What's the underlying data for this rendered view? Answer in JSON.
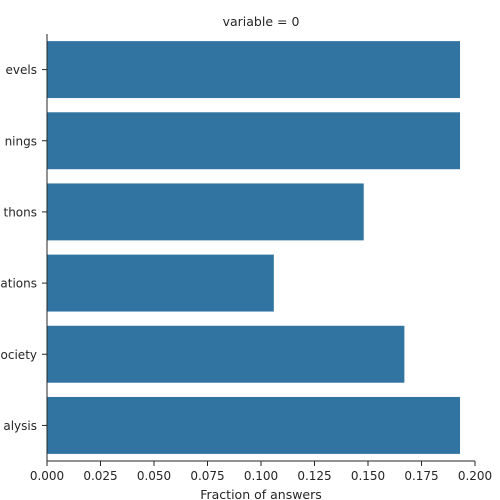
{
  "chart_data": {
    "type": "bar",
    "orientation": "horizontal",
    "title": "variable = 0",
    "xlabel": "Fraction of answers",
    "ylabel": "",
    "categories": [
      "evels",
      "nings",
      "thons",
      "ations",
      "ociety",
      "alysis"
    ],
    "values": [
      0.193,
      0.193,
      0.148,
      0.106,
      0.167,
      0.193
    ],
    "xlim": [
      0,
      0.2
    ],
    "xticks": [
      "0.000",
      "0.025",
      "0.050",
      "0.075",
      "0.100",
      "0.125",
      "0.150",
      "0.175",
      "0.200"
    ],
    "grid": false,
    "legend": "none",
    "bar_color": "#3274a1"
  }
}
